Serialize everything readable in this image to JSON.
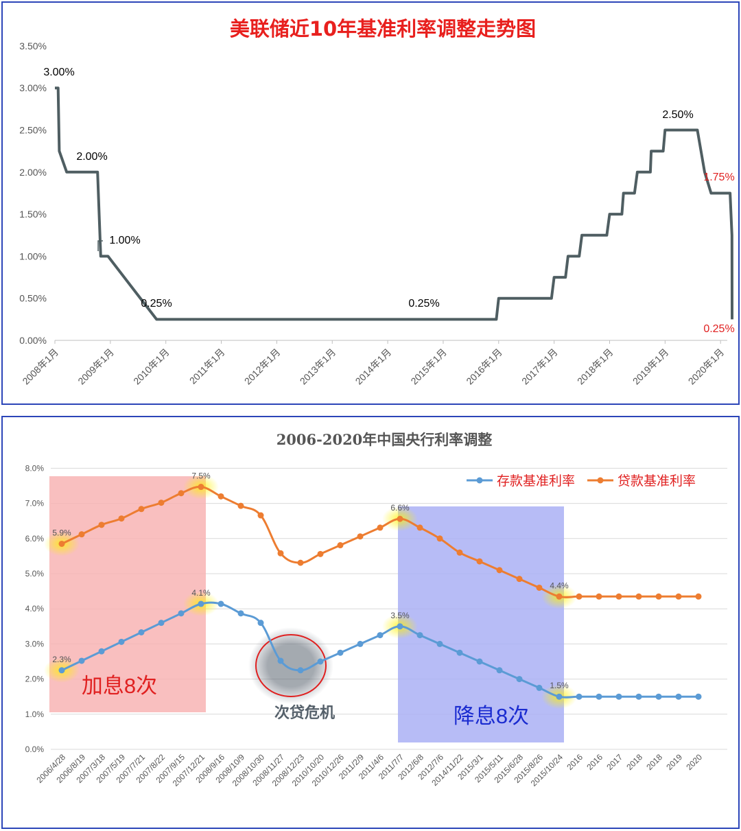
{
  "chart_data": [
    {
      "type": "line",
      "title": "美联储近10年基准利率调整走势图",
      "xlabel": "",
      "ylabel": "",
      "ylim": [
        0,
        3.5
      ],
      "grid": false,
      "y_ticks": [
        "0.00%",
        "0.50%",
        "1.00%",
        "1.50%",
        "2.00%",
        "2.50%",
        "3.00%",
        "3.50%"
      ],
      "x_ticks": [
        "2008年1月",
        "2009年1月",
        "2010年1月",
        "2011年1月",
        "2012年1月",
        "2013年1月",
        "2014年1月",
        "2015年1月",
        "2016年1月",
        "2017年1月",
        "2018年1月",
        "2019年1月",
        "2020年1月"
      ],
      "line_color": "#4f5e62",
      "series": [
        {
          "values_pct": [
            [
              "2008-01",
              3.0
            ],
            [
              "2008-01-22",
              3.0
            ],
            [
              "2008-01-30",
              2.25
            ],
            [
              "2008-03-18",
              2.0
            ],
            [
              "2008-10-08",
              2.0
            ],
            [
              "2008-10-29",
              1.0
            ],
            [
              "2008-12-16",
              1.0
            ],
            [
              "2009-11",
              0.25
            ],
            [
              "2015-12-16",
              0.25
            ],
            [
              "2016-01",
              0.5
            ],
            [
              "2016-12-14",
              0.5
            ],
            [
              "2017-01",
              0.75
            ],
            [
              "2017-03-15",
              0.75
            ],
            [
              "2017-04",
              1.0
            ],
            [
              "2017-06-14",
              1.0
            ],
            [
              "2017-07",
              1.25
            ],
            [
              "2017-12-13",
              1.25
            ],
            [
              "2018-01",
              1.5
            ],
            [
              "2018-03-21",
              1.5
            ],
            [
              "2018-04",
              1.75
            ],
            [
              "2018-06-13",
              1.75
            ],
            [
              "2018-07",
              2.0
            ],
            [
              "2018-09-26",
              2.0
            ],
            [
              "2018-10",
              2.25
            ],
            [
              "2018-12-19",
              2.25
            ],
            [
              "2019-01",
              2.5
            ],
            [
              "2019-07-31",
              2.5
            ],
            [
              "2019-09-18",
              2.0
            ],
            [
              "2019-10-30",
              1.75
            ],
            [
              "2020-03-03",
              1.75
            ],
            [
              "2020-03-15",
              1.25
            ],
            [
              "2020-03-16",
              0.25
            ]
          ]
        }
      ],
      "annotations": [
        {
          "text": "3.00%",
          "color": "#000000"
        },
        {
          "text": "2.00%",
          "color": "#000000"
        },
        {
          "text": "1.00%",
          "color": "#000000"
        },
        {
          "text": "0.25%",
          "color": "#000000"
        },
        {
          "text": "0.25%",
          "color": "#000000"
        },
        {
          "text": "2.50%",
          "color": "#000000"
        },
        {
          "text": "1.75%",
          "color": "#e02020"
        },
        {
          "text": "0.25%",
          "color": "#e02020"
        }
      ]
    },
    {
      "type": "line",
      "title": "2006-2020年中国央行利率调整",
      "xlabel": "",
      "ylabel": "",
      "ylim": [
        0,
        8
      ],
      "grid": true,
      "legend_position": "top-right",
      "y_ticks": [
        "0.0%",
        "1.0%",
        "2.0%",
        "3.0%",
        "4.0%",
        "5.0%",
        "6.0%",
        "7.0%",
        "8.0%"
      ],
      "categories": [
        "2006/4/28",
        "2006/8/19",
        "2007/3/18",
        "2007/5/19",
        "2007/7/21",
        "2007/8/22",
        "2007/9/15",
        "2007/12/21",
        "2008/9/16",
        "2008/10/9",
        "2008/10/30",
        "2008/11/27",
        "2008/12/23",
        "2010/10/20",
        "2010/12/26",
        "2011/2/9",
        "2011/4/6",
        "2011/7/7",
        "2012/6/8",
        "2012/7/6",
        "2014/11/22",
        "2015/3/1",
        "2015/5/11",
        "2015/6/28",
        "2015/8/26",
        "2015/10/24",
        "2016",
        "2016",
        "2017",
        "2018",
        "2018",
        "2019",
        "2020"
      ],
      "series": [
        {
          "name": "存款基准利率",
          "color": "#5b9bd5",
          "values": [
            2.25,
            2.52,
            2.79,
            3.06,
            3.33,
            3.6,
            3.87,
            4.14,
            4.14,
            3.87,
            3.6,
            2.52,
            2.25,
            2.5,
            2.75,
            3.0,
            3.25,
            3.5,
            3.25,
            3.0,
            2.75,
            2.5,
            2.25,
            2.0,
            1.75,
            1.5,
            1.5,
            1.5,
            1.5,
            1.5,
            1.5,
            1.5,
            1.5
          ]
        },
        {
          "name": "贷款基准利率",
          "color": "#ed7d31",
          "values": [
            5.85,
            6.12,
            6.39,
            6.57,
            6.84,
            7.02,
            7.29,
            7.47,
            7.2,
            6.93,
            6.66,
            5.58,
            5.31,
            5.56,
            5.81,
            6.06,
            6.31,
            6.56,
            6.31,
            6.0,
            5.6,
            5.35,
            5.1,
            4.85,
            4.6,
            4.35,
            4.35,
            4.35,
            4.35,
            4.35,
            4.35,
            4.35,
            4.35
          ]
        }
      ],
      "data_labels": {
        "loan": [
          {
            "index": 0,
            "text": "5.9%"
          },
          {
            "index": 7,
            "text": "7.5%"
          },
          {
            "index": 17,
            "text": "6.6%"
          },
          {
            "index": 25,
            "text": "4.4%"
          }
        ],
        "deposit": [
          {
            "index": 0,
            "text": "2.3%"
          },
          {
            "index": 7,
            "text": "4.1%"
          },
          {
            "index": 17,
            "text": "3.5%"
          },
          {
            "index": 25,
            "text": "1.5%"
          }
        ]
      },
      "annotations": {
        "raise": {
          "text": "加息8次",
          "color": "#e02020",
          "range": [
            0,
            7
          ]
        },
        "cut": {
          "text": "降息8次",
          "color": "#1a2bd0",
          "range": [
            17,
            25
          ]
        },
        "crisis": {
          "text": "次贷危机",
          "color": "#55606a"
        }
      }
    }
  ]
}
